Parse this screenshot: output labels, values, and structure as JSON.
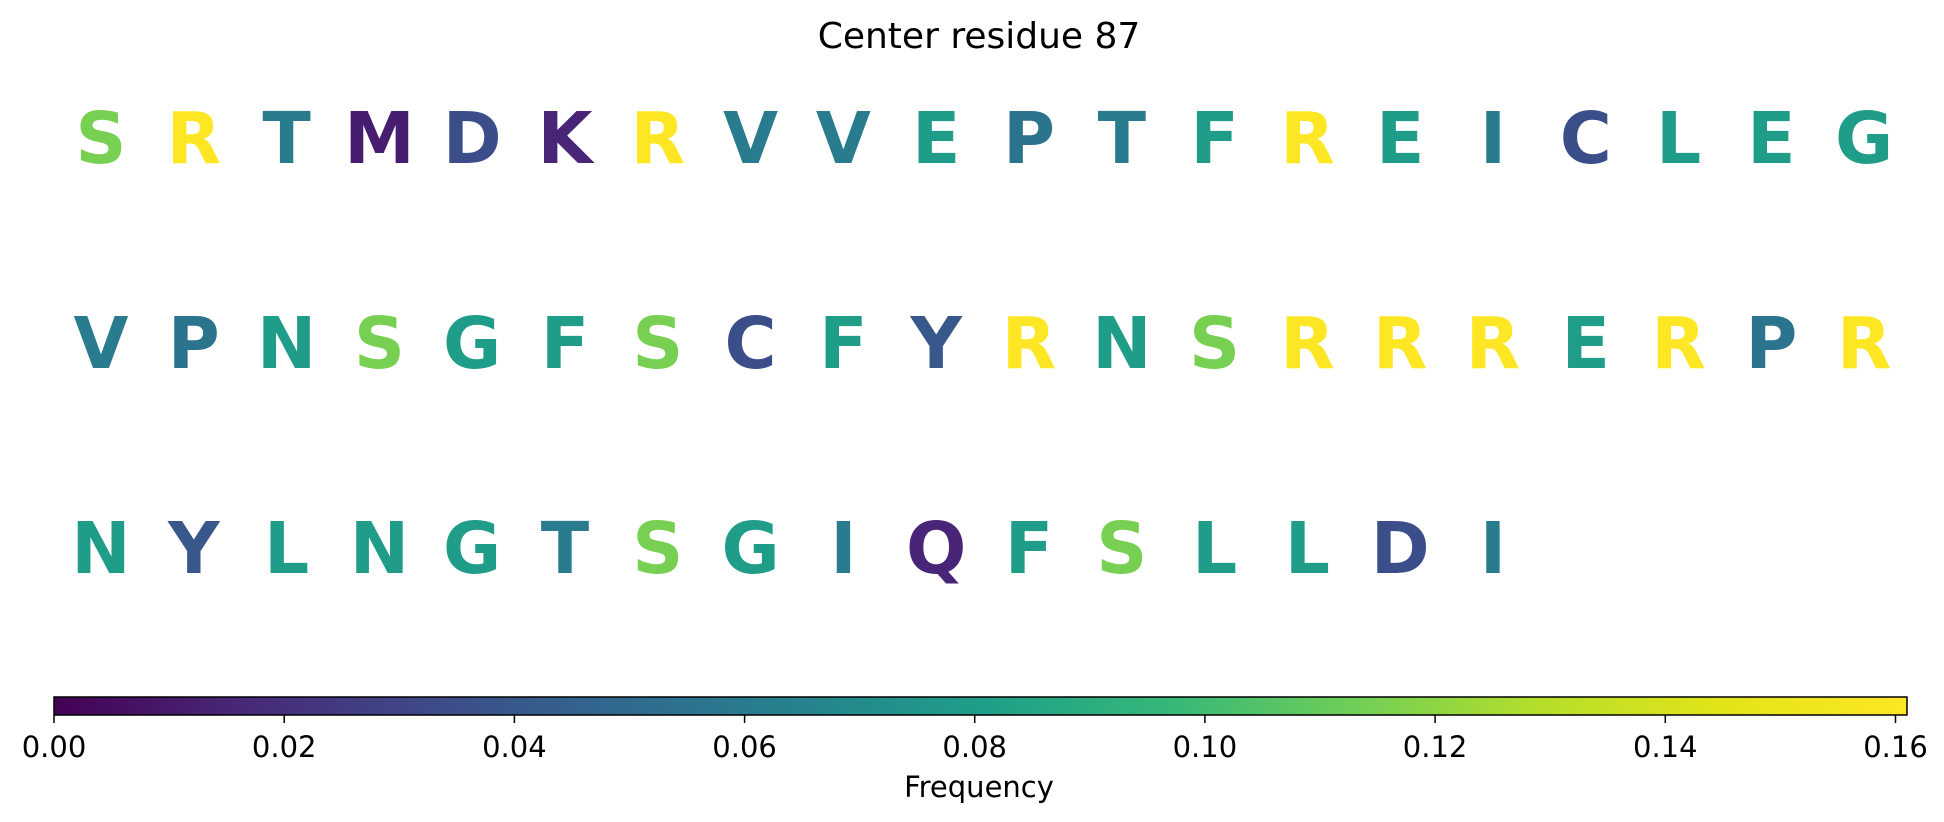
{
  "chart_data": {
    "type": "heatmap",
    "title": "Center residue 87",
    "colormap": "viridis",
    "colorbar": {
      "label": "Frequency",
      "range": [
        0.0,
        0.161
      ],
      "ticks": [
        0.0,
        0.02,
        0.04,
        0.06,
        0.08,
        0.1,
        0.12,
        0.14,
        0.16
      ],
      "tick_labels": [
        "0.00",
        "0.02",
        "0.04",
        "0.06",
        "0.08",
        "0.10",
        "0.12",
        "0.14",
        "0.16"
      ],
      "orientation": "horizontal",
      "position": "bottom"
    },
    "rows": [
      [
        {
          "letter": "S",
          "value": 0.115
        },
        {
          "letter": "R",
          "value": 0.161
        },
        {
          "letter": "T",
          "value": 0.06
        },
        {
          "letter": "M",
          "value": 0.012
        },
        {
          "letter": "D",
          "value": 0.035
        },
        {
          "letter": "K",
          "value": 0.015
        },
        {
          "letter": "R",
          "value": 0.161
        },
        {
          "letter": "V",
          "value": 0.06
        },
        {
          "letter": "V",
          "value": 0.06
        },
        {
          "letter": "E",
          "value": 0.08
        },
        {
          "letter": "P",
          "value": 0.055
        },
        {
          "letter": "T",
          "value": 0.06
        },
        {
          "letter": "F",
          "value": 0.08
        },
        {
          "letter": "R",
          "value": 0.161
        },
        {
          "letter": "E",
          "value": 0.08
        },
        {
          "letter": "I",
          "value": 0.06
        },
        {
          "letter": "C",
          "value": 0.035
        },
        {
          "letter": "L",
          "value": 0.08
        },
        {
          "letter": "E",
          "value": 0.08
        },
        {
          "letter": "G",
          "value": 0.08
        }
      ],
      [
        {
          "letter": "V",
          "value": 0.06
        },
        {
          "letter": "P",
          "value": 0.055
        },
        {
          "letter": "N",
          "value": 0.08
        },
        {
          "letter": "S",
          "value": 0.115
        },
        {
          "letter": "G",
          "value": 0.08
        },
        {
          "letter": "F",
          "value": 0.08
        },
        {
          "letter": "S",
          "value": 0.115
        },
        {
          "letter": "C",
          "value": 0.035
        },
        {
          "letter": "F",
          "value": 0.08
        },
        {
          "letter": "Y",
          "value": 0.04
        },
        {
          "letter": "R",
          "value": 0.161
        },
        {
          "letter": "N",
          "value": 0.08
        },
        {
          "letter": "S",
          "value": 0.115
        },
        {
          "letter": "R",
          "value": 0.161
        },
        {
          "letter": "R",
          "value": 0.161
        },
        {
          "letter": "R",
          "value": 0.161
        },
        {
          "letter": "E",
          "value": 0.08
        },
        {
          "letter": "R",
          "value": 0.161
        },
        {
          "letter": "P",
          "value": 0.055
        },
        {
          "letter": "R",
          "value": 0.161
        }
      ],
      [
        {
          "letter": "N",
          "value": 0.08
        },
        {
          "letter": "Y",
          "value": 0.04
        },
        {
          "letter": "L",
          "value": 0.08
        },
        {
          "letter": "N",
          "value": 0.08
        },
        {
          "letter": "G",
          "value": 0.08
        },
        {
          "letter": "T",
          "value": 0.06
        },
        {
          "letter": "S",
          "value": 0.115
        },
        {
          "letter": "G",
          "value": 0.08
        },
        {
          "letter": "I",
          "value": 0.06
        },
        {
          "letter": "Q",
          "value": 0.015
        },
        {
          "letter": "F",
          "value": 0.08
        },
        {
          "letter": "S",
          "value": 0.115
        },
        {
          "letter": "L",
          "value": 0.08
        },
        {
          "letter": "L",
          "value": 0.08
        },
        {
          "letter": "D",
          "value": 0.035
        },
        {
          "letter": "I",
          "value": 0.06
        }
      ]
    ]
  }
}
